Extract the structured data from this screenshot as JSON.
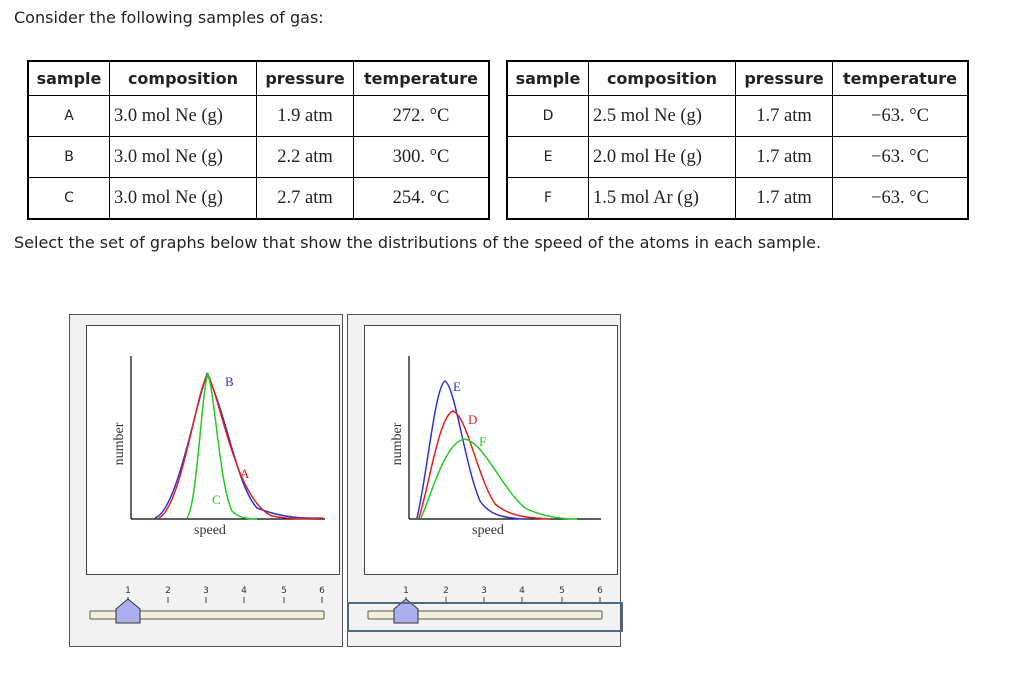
{
  "prompt_top": "Consider the following samples of gas:",
  "prompt_bottom": "Select the set of graphs below that show the distributions of the speed of the atoms in each sample.",
  "table_headers": [
    "sample",
    "composition",
    "pressure",
    "temperature"
  ],
  "table_left": [
    {
      "sample": "A",
      "composition": "3.0 mol Ne (g)",
      "pressure": "1.9 atm",
      "temperature": "272. °C"
    },
    {
      "sample": "B",
      "composition": "3.0 mol Ne (g)",
      "pressure": "2.2 atm",
      "temperature": "300. °C"
    },
    {
      "sample": "C",
      "composition": "3.0 mol Ne (g)",
      "pressure": "2.7 atm",
      "temperature": "254. °C"
    }
  ],
  "table_right": [
    {
      "sample": "D",
      "composition": "2.5 mol Ne (g)",
      "pressure": "1.7 atm",
      "temperature": "−63. °C"
    },
    {
      "sample": "E",
      "composition": "2.0 mol He (g)",
      "pressure": "1.7 atm",
      "temperature": "−63. °C"
    },
    {
      "sample": "F",
      "composition": "1.5 mol Ar (g)",
      "pressure": "1.7 atm",
      "temperature": "−63. °C"
    }
  ],
  "graph1": {
    "ylabel": "number",
    "xlabel": "speed",
    "curve_labels": [
      "B",
      "A",
      "C"
    ],
    "colors": {
      "blue": "#3333cc",
      "red": "#e02020",
      "green": "#22cc22"
    }
  },
  "graph2": {
    "ylabel": "number",
    "xlabel": "speed",
    "curve_labels": [
      "E",
      "D",
      "F"
    ],
    "colors": {
      "blue": "#3333cc",
      "red": "#e02020",
      "green": "#22cc22"
    }
  },
  "slider": {
    "ticks": [
      "1",
      "2",
      "3",
      "4",
      "5",
      "6"
    ],
    "value": 1,
    "handle_color": "#aab0ee"
  }
}
